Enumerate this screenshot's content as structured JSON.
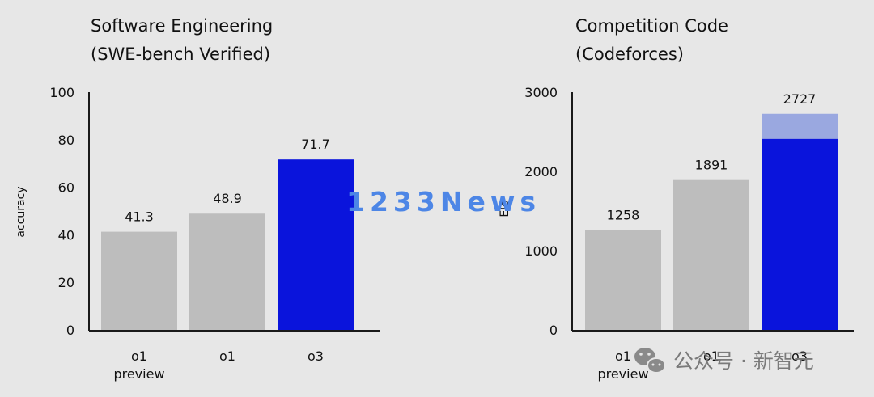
{
  "colors": {
    "background": "#e7e7e7",
    "bar_gray": "#bdbdbd",
    "bar_blue": "#0a14dc",
    "bar_blue_light": "#9aa8e0",
    "axis": "#1a1a1a",
    "watermark": "#4d86e6"
  },
  "chart_data": [
    {
      "type": "bar",
      "title_lines": [
        "Software Engineering",
        "(SWE-bench Verified)"
      ],
      "ylabel": "accuracy",
      "ylim": [
        0,
        100
      ],
      "yticks": [
        0,
        20,
        40,
        60,
        80,
        100
      ],
      "categories": [
        {
          "lines": [
            "o1",
            "preview"
          ]
        },
        {
          "lines": [
            "o1"
          ]
        },
        {
          "lines": [
            "o3"
          ]
        }
      ],
      "values": [
        41.3,
        48.9,
        71.7
      ],
      "value_labels": [
        "41.3",
        "48.9",
        "71.7"
      ],
      "bar_colors": [
        "#bdbdbd",
        "#bdbdbd",
        "#0a14dc"
      ]
    },
    {
      "type": "bar",
      "title_lines": [
        "Competition Code",
        "(Codeforces)"
      ],
      "ylabel": "Elo",
      "ylim": [
        0,
        3000
      ],
      "yticks": [
        0,
        1000,
        2000,
        3000
      ],
      "categories": [
        {
          "lines": [
            "o1",
            "preview"
          ]
        },
        {
          "lines": [
            "o1"
          ]
        },
        {
          "lines": [
            "o3"
          ]
        }
      ],
      "values": [
        1258,
        1891,
        2727
      ],
      "value_labels": [
        "1258",
        "1891",
        "2727"
      ],
      "bar_colors": [
        "#bdbdbd",
        "#bdbdbd",
        "#0a14dc"
      ],
      "stacked_base": [
        null,
        null,
        2410
      ],
      "stacked_top_color": "#9aa8e0"
    }
  ],
  "watermark": {
    "text": "1233News"
  },
  "wechat": {
    "text": "公众号 · 新智元",
    "icon": "wechat-icon"
  }
}
